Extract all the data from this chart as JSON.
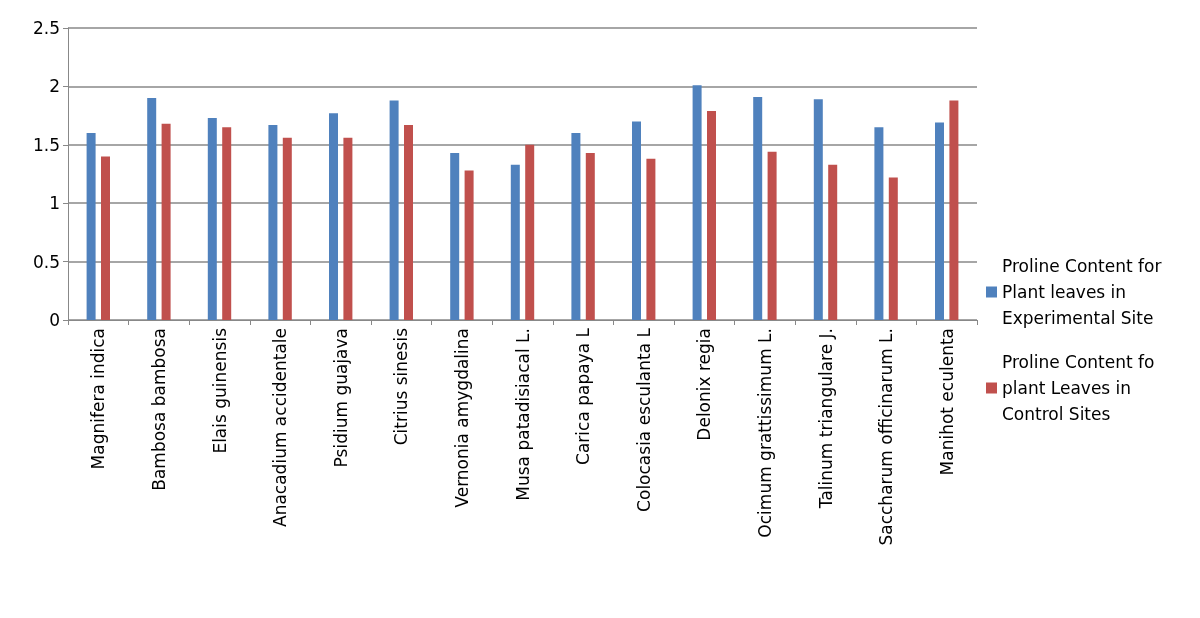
{
  "chart_data": {
    "type": "bar",
    "categories": [
      "Magnifera indica",
      "Bambosa bambosa",
      "Elais guinensis",
      "Anacadium accidentale",
      "Psidium guajava",
      "Citrius sinesis",
      "Vernonia amygdalina",
      "Musa patadisiacal L.",
      "Carica papaya L",
      "Colocasia esculanta L",
      "Delonix regia",
      "Ocimum grattissimum L.",
      "Talinum triangulare J.",
      "Saccharum officinarum L.",
      "Manihot eculenta"
    ],
    "series": [
      {
        "name": "Proline Content for Plant leaves in Experimental Site",
        "color": "#4f81bd",
        "values": [
          1.6,
          1.9,
          1.73,
          1.67,
          1.77,
          1.88,
          1.43,
          1.33,
          1.6,
          1.7,
          2.01,
          1.91,
          1.89,
          1.65,
          1.69
        ]
      },
      {
        "name": "Proline Content fo plant Leaves in Control Sites",
        "color": "#c0504d",
        "values": [
          1.4,
          1.68,
          1.65,
          1.56,
          1.56,
          1.67,
          1.28,
          1.5,
          1.43,
          1.38,
          1.79,
          1.44,
          1.33,
          1.22,
          1.88
        ]
      }
    ],
    "ylim": [
      0,
      2.5
    ],
    "yticks": [
      0,
      0.5,
      1,
      1.5,
      2,
      2.5
    ],
    "grid": "y",
    "legend": "right"
  }
}
